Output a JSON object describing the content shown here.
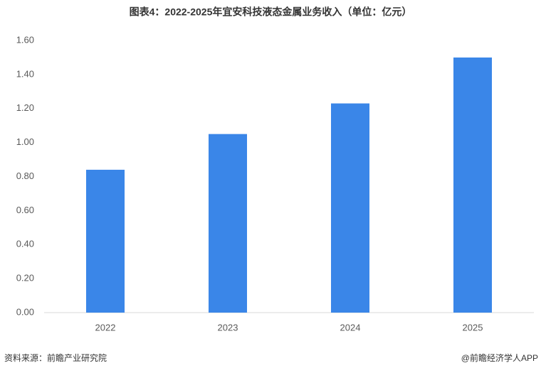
{
  "chart_data": {
    "type": "bar",
    "title": "图表4：2022-2025年宜安科技液态金属业务收入（单位：亿元）",
    "categories": [
      "2022",
      "2023",
      "2024",
      "2025"
    ],
    "values": [
      0.84,
      1.05,
      1.23,
      1.5
    ],
    "color": "#3a86e8",
    "ylim": [
      0,
      1.6
    ],
    "yticks": [
      {
        "value": 0,
        "label": "0.00"
      },
      {
        "value": 0.2,
        "label": "0.20"
      },
      {
        "value": 0.4,
        "label": "0.40"
      },
      {
        "value": 0.6,
        "label": "0.60"
      },
      {
        "value": 0.8,
        "label": "0.80"
      },
      {
        "value": 1.0,
        "label": "1.00"
      },
      {
        "value": 1.2,
        "label": "1.20"
      },
      {
        "value": 1.4,
        "label": "1.40"
      },
      {
        "value": 1.6,
        "label": "1.60"
      }
    ],
    "grid": false,
    "source": "资料来源：前瞻产业研究院",
    "credit": "@前瞻经济学人APP"
  }
}
